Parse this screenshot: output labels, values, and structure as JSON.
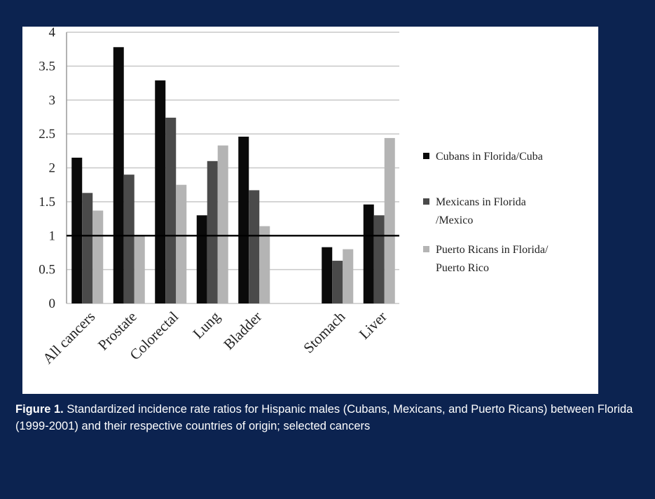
{
  "colors": {
    "background": "#0c2350",
    "panel": "#ffffff",
    "gridline": "#c8c8c8",
    "reference_line": "#000000"
  },
  "caption": {
    "label": "Figure 1.",
    "text": "Standardized incidence rate ratios for Hispanic males (Cubans, Mexicans, and Puerto Ricans) between Florida (1999-2001) and their respective countries of origin; selected cancers"
  },
  "chart_data": {
    "type": "bar",
    "title": "",
    "xlabel": "",
    "ylabel": "",
    "ylim": [
      0,
      4
    ],
    "yticks": [
      0,
      0.5,
      1,
      1.5,
      2,
      2.5,
      3,
      3.5,
      4
    ],
    "ytick_labels": [
      "0",
      "0.5",
      "1",
      "1.5",
      "2",
      "2.5",
      "3",
      "3.5",
      "4"
    ],
    "grid": true,
    "reference_line": 1,
    "legend_position": "right",
    "categories": [
      "All cancers",
      "Prostate",
      "Colorectal",
      "Lung",
      "Bladder",
      "",
      "Stomach",
      "Liver"
    ],
    "series": [
      {
        "name": "Cubans in Florida/Cuba",
        "legend_lines": [
          "Cubans in Florida/Cuba"
        ],
        "color": "#0a0a0a",
        "values": [
          2.15,
          3.78,
          3.29,
          1.3,
          2.46,
          null,
          0.83,
          1.46
        ]
      },
      {
        "name": "Mexicans in Florida /Mexico",
        "legend_lines": [
          "Mexicans in Florida",
          "/Mexico"
        ],
        "color": "#4a4a4a",
        "values": [
          1.63,
          1.9,
          2.74,
          2.1,
          1.67,
          null,
          0.63,
          1.3
        ]
      },
      {
        "name": "Puerto Ricans in Florida/ Puerto Rico",
        "legend_lines": [
          "Puerto Ricans in Florida/",
          "Puerto Rico"
        ],
        "color": "#b4b4b4",
        "values": [
          1.37,
          1.0,
          1.75,
          2.33,
          1.14,
          null,
          0.8,
          2.44
        ]
      }
    ]
  }
}
